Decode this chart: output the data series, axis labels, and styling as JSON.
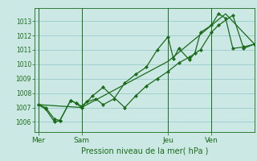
{
  "background_color": "#cce8e4",
  "grid_color": "#99cccc",
  "line_color": "#1a6b1a",
  "marker_color": "#1a6b1a",
  "ylabel_ticks": [
    1006,
    1007,
    1008,
    1009,
    1010,
    1011,
    1012,
    1013
  ],
  "ylim": [
    1005.3,
    1013.9
  ],
  "day_labels": [
    "Mer",
    "Sam",
    "Jeu",
    "Ven"
  ],
  "day_positions": [
    0,
    24,
    72,
    96
  ],
  "xlim": [
    -2,
    120
  ],
  "xlabel": "Pression niveau de la mer( hPa )",
  "lines": [
    {
      "x": [
        0,
        4,
        9,
        12,
        18,
        21,
        24,
        27,
        32,
        36,
        42,
        48,
        54,
        60,
        66,
        72,
        75,
        78,
        84,
        87,
        90,
        96,
        100,
        104,
        108,
        114,
        120
      ],
      "y": [
        1007.2,
        1006.9,
        1006.0,
        1006.1,
        1007.5,
        1007.3,
        1007.1,
        1007.4,
        1007.6,
        1007.2,
        1007.6,
        1008.7,
        1009.3,
        1009.8,
        1011.0,
        1011.9,
        1010.4,
        1011.1,
        1010.3,
        1010.8,
        1012.2,
        1012.7,
        1013.5,
        1013.2,
        1011.1,
        1011.2,
        1011.4
      ],
      "style": "line_marker"
    },
    {
      "x": [
        0,
        4,
        9,
        12,
        18,
        21,
        24,
        30,
        36,
        48,
        54,
        60,
        66,
        72,
        78,
        84,
        90,
        96,
        100,
        108,
        114,
        120
      ],
      "y": [
        1007.2,
        1007.0,
        1006.2,
        1006.1,
        1007.5,
        1007.3,
        1007.0,
        1007.8,
        1008.4,
        1007.0,
        1007.8,
        1008.5,
        1009.0,
        1009.5,
        1010.1,
        1010.5,
        1011.0,
        1012.2,
        1012.7,
        1013.4,
        1011.1,
        1011.4
      ],
      "style": "line_marker"
    },
    {
      "x": [
        0,
        24,
        66,
        72,
        100,
        104,
        120
      ],
      "y": [
        1007.2,
        1007.0,
        1009.8,
        1010.2,
        1013.1,
        1013.5,
        1011.4
      ],
      "style": "line_only"
    }
  ]
}
